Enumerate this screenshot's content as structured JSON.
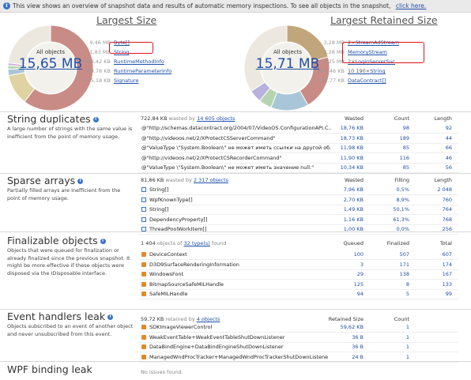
{
  "info_bar": {
    "text": "This view shows an overview of snapshot data and results of automatic memory inspections. To see all objects in the snapshot,",
    "link": "click here."
  },
  "largest_size": {
    "title": "Largest Size",
    "center_label": "All objects",
    "center_value": "15,65 MB",
    "legend": [
      {
        "size": "9,46 MB",
        "name": "Byte[]",
        "color": "#c98b86",
        "highlighted": true
      },
      {
        "size": "1,83 MB",
        "name": "String",
        "color": "#e0d2a2"
      },
      {
        "size": "388,42 KB",
        "name": "RuntimeMethodInfo",
        "color": "#a8c6d8"
      },
      {
        "size": "208,78 KB",
        "name": "RuntimeParameterInfo",
        "color": "#b7d4b0"
      },
      {
        "size": "175,18 KB",
        "name": "Signature",
        "color": "#d4b8d6"
      }
    ],
    "chart_data": {
      "type": "pie",
      "categories": [
        "Byte[]",
        "String",
        "RuntimeMethodInfo",
        "RuntimeParameterInfo",
        "Signature",
        "Other"
      ],
      "values": [
        9.46,
        1.83,
        0.38,
        0.2,
        0.17,
        3.61
      ],
      "unit": "MB"
    }
  },
  "largest_retained": {
    "title": "Largest Retained Size",
    "center_label": "All objects",
    "center_value": "15,71 MB",
    "legend": [
      {
        "size": "3,28 MB",
        "prefix": "2×",
        "name": "StreamAdStream",
        "color": "#c2a67b",
        "highlighted": true
      },
      {
        "size": "3,28 MB",
        "prefix": "",
        "name": "MemoryStream",
        "color": "#c98b86",
        "highlighted": true
      },
      {
        "size": "2,25 MB",
        "prefix": "2×",
        "name": "LoginServerSvc",
        "color": "#a8c6d8"
      },
      {
        "size": "801,46 KB",
        "prefix": "10 190×",
        "name": "String",
        "color": "#b7d4b0"
      },
      {
        "size": "772,77 KB",
        "prefix": "",
        "name": "DataContract[]",
        "color": "#b8b0dd"
      }
    ],
    "chart_data": {
      "type": "pie",
      "categories": [
        "StreamAdStream",
        "MemoryStream",
        "LoginServerSvc",
        "String",
        "DataContract[]",
        "Other"
      ],
      "values": [
        3.28,
        3.28,
        2.25,
        0.78,
        0.75,
        5.37
      ],
      "unit": "MB"
    }
  },
  "string_duplicates": {
    "title": "String duplicates",
    "description": "A large number of strings with the same value is inefficient from the point of memory usage.",
    "summary_amount": "722,84 KB",
    "summary_mid": "wasted by",
    "summary_link": "14 605 objects",
    "headers": [
      "Wasted",
      "Count",
      "Length"
    ],
    "rows": [
      {
        "name": "@\"http://schemas.datacontract.org/2004/07/VideoOS.ConfigurationAPI.C...",
        "wasted": "18,76 KB",
        "count": "98",
        "length": "92"
      },
      {
        "name": "@\"http://videoos.net/2/XProtectCSServerCommand\"",
        "wasted": "18,73 KB",
        "count": "189",
        "length": "44"
      },
      {
        "name": "@\"ValueType \\\"System.Boolean\\\" не может иметь ссылки на другой об...",
        "wasted": "11,98 KB",
        "count": "85",
        "length": "66"
      },
      {
        "name": "@\"http://videoos.net/2/XProtectCSRecorderCommand\"",
        "wasted": "11,90 KB",
        "count": "116",
        "length": "46"
      },
      {
        "name": "@\"ValueType \\\"System.Boolean\\\" не может иметь значение null.\"",
        "wasted": "10,34 KB",
        "count": "85",
        "length": "56"
      }
    ]
  },
  "sparse_arrays": {
    "title": "Sparse arrays",
    "description": "Partially filled arrays are inefficient from the point of memory usage.",
    "summary_amount": "81,86 KB",
    "summary_mid": "wasted by",
    "summary_link": "2 317 objects",
    "headers": [
      "Wasted",
      "Filling",
      "Length"
    ],
    "rows": [
      {
        "name": "String[]",
        "wasted": "7,96 KB",
        "filling": "0,5%",
        "length": "2 048"
      },
      {
        "name": "WpfKnownType[]",
        "wasted": "2,70 KB",
        "filling": "8,9%",
        "length": "760"
      },
      {
        "name": "String[]",
        "wasted": "1,49 KB",
        "filling": "50,1%",
        "length": "764"
      },
      {
        "name": "DependencyProperty[]",
        "wasted": "1,16 KB",
        "filling": "61,3%",
        "length": "768"
      },
      {
        "name": "ThreadPoolWorkItem[]",
        "wasted": "1,00 KB",
        "filling": "0,0%",
        "length": "256"
      }
    ]
  },
  "finalizable": {
    "title": "Finalizable objects",
    "description": "Objects that were queued for finalization or already finalized since the previous snapshot. It might be more effective if these objects were disposed via the IDisposable interface.",
    "summary_amount": "1 404",
    "summary_mid": "objects of",
    "summary_link": "32 type(s)",
    "summary_end": "found",
    "headers": [
      "Queued",
      "Finalized",
      "Total"
    ],
    "rows": [
      {
        "name": "DeviceContext",
        "queued": "100",
        "finalized": "507",
        "total": "607"
      },
      {
        "name": "D3D9SurfaceRenderingInformation",
        "queued": "3",
        "finalized": "171",
        "total": "174"
      },
      {
        "name": "WindowsFont",
        "queued": "29",
        "finalized": "138",
        "total": "167"
      },
      {
        "name": "BitmapSourceSafeMILHandle",
        "queued": "125",
        "finalized": "8",
        "total": "133"
      },
      {
        "name": "SafeMILHandle",
        "queued": "94",
        "finalized": "5",
        "total": "99"
      }
    ]
  },
  "event_handlers": {
    "title": "Event handlers leak",
    "description": "Objects subscribed to an event of another object and never unsubscribed from this event.",
    "summary_amount": "59,72 KB",
    "summary_mid": "retained by",
    "summary_link": "4 objects",
    "headers": [
      "Retained Size",
      "Count"
    ],
    "rows": [
      {
        "name": "SDKImageViewerControl",
        "retained": "59,62 KB",
        "count": "1"
      },
      {
        "name": "WeakEventTable+WeakEventTableShutDownListener",
        "retained": "36 B",
        "count": "1"
      },
      {
        "name": "DataBindEngine+DataBindEngineShutDownListener",
        "retained": "36 B",
        "count": "1"
      },
      {
        "name": "ManagedWndProcTracker+ManagedWndProcTrackerShutDownListene",
        "retained": "24 B",
        "count": "1"
      }
    ]
  },
  "wpf_binding": {
    "title": "WPF binding leak",
    "no_issues": "No issues found."
  }
}
